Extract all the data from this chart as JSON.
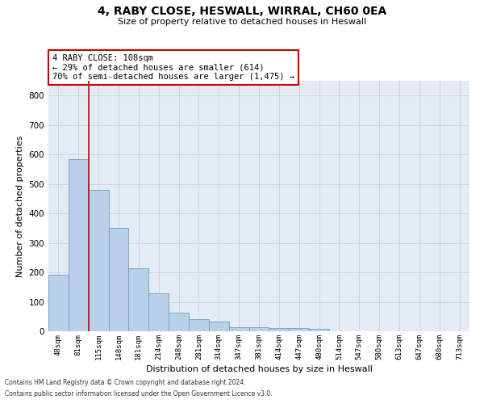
{
  "title": "4, RABY CLOSE, HESWALL, WIRRAL, CH60 0EA",
  "subtitle": "Size of property relative to detached houses in Heswall",
  "xlabel": "Distribution of detached houses by size in Heswall",
  "ylabel": "Number of detached properties",
  "categories": [
    "48sqm",
    "81sqm",
    "115sqm",
    "148sqm",
    "181sqm",
    "214sqm",
    "248sqm",
    "281sqm",
    "314sqm",
    "347sqm",
    "381sqm",
    "414sqm",
    "447sqm",
    "480sqm",
    "514sqm",
    "547sqm",
    "580sqm",
    "613sqm",
    "647sqm",
    "680sqm",
    "713sqm"
  ],
  "values": [
    192,
    585,
    480,
    352,
    215,
    130,
    62,
    40,
    32,
    15,
    15,
    10,
    10,
    9,
    0,
    0,
    0,
    0,
    0,
    0,
    0
  ],
  "bar_color": "#b8d0e8",
  "bar_edge_color": "#6a9fc0",
  "property_label": "4 RABY CLOSE: 108sqm",
  "annotation_line1": "← 29% of detached houses are smaller (614)",
  "annotation_line2": "70% of semi-detached houses are larger (1,475) →",
  "vline_index": 2,
  "ylim": [
    0,
    850
  ],
  "yticks": [
    0,
    100,
    200,
    300,
    400,
    500,
    600,
    700,
    800
  ],
  "grid_color": "#c8d0dc",
  "bg_color": "#e4ebf5",
  "annotation_box_color": "#cc0000",
  "vline_color": "#cc0000",
  "footer_line1": "Contains HM Land Registry data © Crown copyright and database right 2024.",
  "footer_line2": "Contains public sector information licensed under the Open Government Licence v3.0."
}
